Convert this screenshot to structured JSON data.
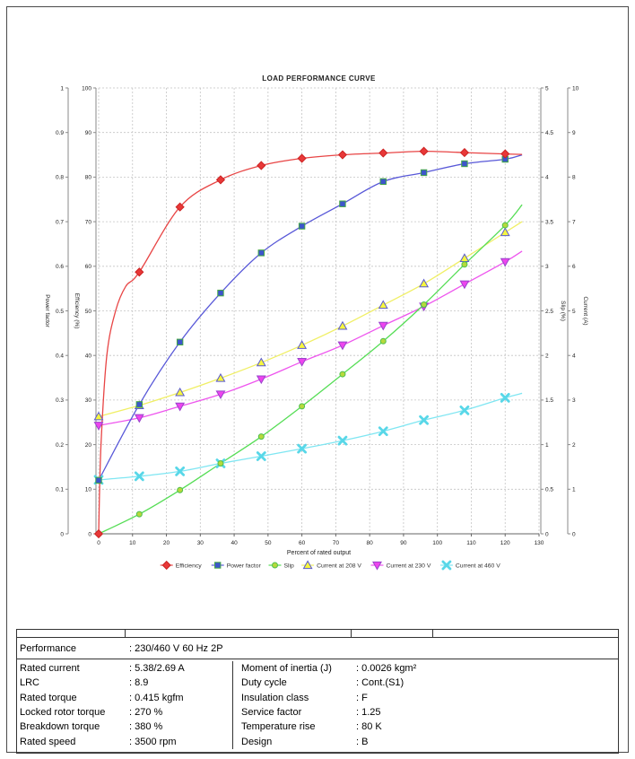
{
  "chart_data": {
    "type": "line",
    "title": "LOAD PERFORMANCE CURVE",
    "xlabel": "Percent of rated output",
    "x_axis": {
      "min": 0,
      "max": 130,
      "tick_step": 10
    },
    "grid": true,
    "legend_position": "bottom",
    "axes": {
      "power_factor": {
        "label": "Power factor",
        "min": 0,
        "max": 1,
        "tick_step": 0.1,
        "side": "left-outer"
      },
      "efficiency": {
        "label": "Efficiency (%)",
        "min": 0,
        "max": 100,
        "tick_step": 10,
        "side": "left-inner"
      },
      "slip": {
        "label": "Slip (%)",
        "min": 0,
        "max": 5,
        "tick_step": 0.5,
        "side": "right-inner"
      },
      "current": {
        "label": "Current (A)",
        "min": 0,
        "max": 10,
        "tick_step": 1,
        "side": "right-outer"
      }
    },
    "x": [
      0,
      12,
      24,
      36,
      48,
      60,
      72,
      84,
      96,
      108,
      120
    ],
    "series": [
      {
        "name": "Current at 208 V",
        "axis": "current",
        "marker": "triangle-up",
        "line_color": "#f0ef65",
        "fill": "#f6f63e",
        "stroke": "#5a5ad0",
        "values": [
          2.63,
          2.88,
          3.17,
          3.49,
          3.84,
          4.23,
          4.66,
          5.13,
          5.61,
          6.18,
          6.76
        ],
        "lead_points": [],
        "tail_point": [
          125,
          7.0
        ]
      },
      {
        "name": "Current at 230 V",
        "axis": "current",
        "marker": "triangle-down",
        "line_color": "#ee55ee",
        "fill": "#ee44ee",
        "stroke": "#9944cc",
        "values": [
          2.43,
          2.6,
          2.86,
          3.13,
          3.47,
          3.86,
          4.23,
          4.67,
          5.1,
          5.6,
          6.1
        ],
        "lead_points": [],
        "tail_point": [
          125,
          6.34
        ]
      },
      {
        "name": "Current at 460 V",
        "axis": "current",
        "marker": "x",
        "line_color": "#7fe6f2",
        "fill": "#58d7e8",
        "stroke": "#58d7e8",
        "values": [
          1.21,
          1.29,
          1.4,
          1.58,
          1.74,
          1.91,
          2.09,
          2.3,
          2.55,
          2.77,
          3.05
        ],
        "lead_points": [],
        "tail_point": [
          125,
          3.15
        ]
      },
      {
        "name": "Slip",
        "axis": "slip",
        "marker": "circle",
        "line_color": "#55dd55",
        "fill": "#b7d93c",
        "stroke": "#4ec04e",
        "values": [
          0,
          0.22,
          0.49,
          0.79,
          1.09,
          1.43,
          1.79,
          2.16,
          2.57,
          3.02,
          3.46
        ],
        "lead_points": [],
        "tail_point": [
          125,
          3.69
        ]
      },
      {
        "name": "Power factor",
        "axis": "power_factor",
        "marker": "square",
        "line_color": "#5858d8",
        "fill": "#3d55cc",
        "stroke": "#44a844",
        "values": [
          0.12,
          0.29,
          0.43,
          0.54,
          0.63,
          0.69,
          0.74,
          0.79,
          0.81,
          0.83,
          0.84
        ],
        "lead_points": [],
        "tail_point": [
          125,
          0.85
        ]
      },
      {
        "name": "Efficiency",
        "axis": "efficiency",
        "marker": "diamond",
        "line_color": "#e84545",
        "fill": "#e83838",
        "stroke": "#cc2222",
        "values": [
          0,
          58.7,
          73.3,
          79.4,
          82.6,
          84.2,
          85.0,
          85.4,
          85.8,
          85.5,
          85.2
        ],
        "lead_points": [
          [
            0.7,
            20
          ],
          [
            2.4,
            40
          ],
          [
            5,
            50
          ],
          [
            8,
            55.5
          ]
        ],
        "tail_point": [
          125,
          85.1
        ]
      }
    ],
    "legend_order": [
      "Efficiency",
      "Power factor",
      "Slip",
      "Current at 208 V",
      "Current at 230 V",
      "Current at 460 V"
    ]
  },
  "table": {
    "header": {
      "label": "Performance",
      "value": ": 230/460 V 60 Hz 2P"
    },
    "left_rows": [
      {
        "label": "Rated current",
        "value": ": 5.38/2.69 A"
      },
      {
        "label": "LRC",
        "value": ": 8.9"
      },
      {
        "label": "Rated torque",
        "value": ": 0.415 kgfm"
      },
      {
        "label": "Locked rotor torque",
        "value": ": 270 %"
      },
      {
        "label": "Breakdown torque",
        "value": ": 380 %"
      },
      {
        "label": "Rated speed",
        "value": ": 3500 rpm"
      }
    ],
    "right_rows": [
      {
        "label": "Moment of inertia (J)",
        "value": ": 0.0026 kgm²"
      },
      {
        "label": "Duty cycle",
        "value": ": Cont.(S1)"
      },
      {
        "label": "Insulation class",
        "value": ": F"
      },
      {
        "label": "Service factor",
        "value": ": 1.25"
      },
      {
        "label": "Temperature rise",
        "value": ": 80 K"
      },
      {
        "label": "Design",
        "value": ": B"
      }
    ]
  },
  "colors": {
    "grid": "#c4c4c4",
    "axis": "#8a8a8a",
    "x_axis": "#666666",
    "text": "#222222",
    "table_line": "#333333"
  }
}
